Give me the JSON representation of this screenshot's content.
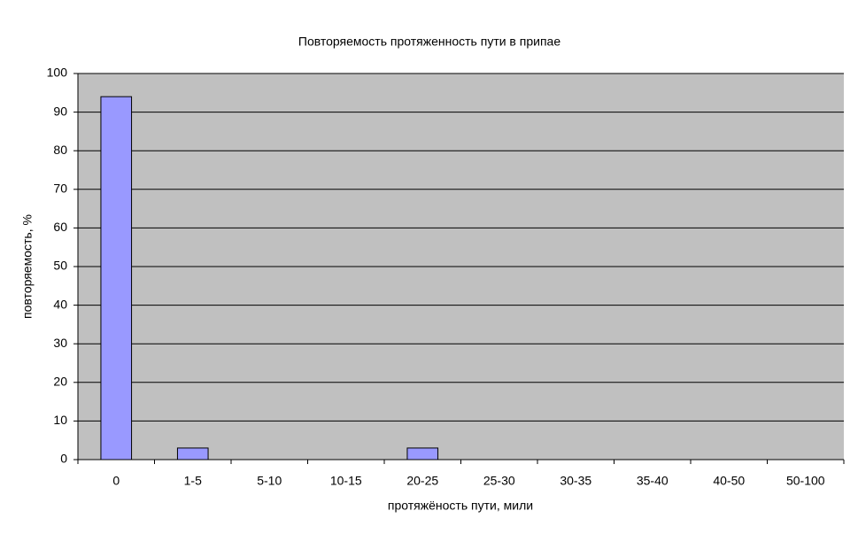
{
  "chart_data": {
    "type": "bar",
    "title": "Повторяемость протяженность пути в припае",
    "x_label": "протяжёность пути, мили",
    "y_label": "повторяемость, %",
    "categories": [
      "0",
      "1-5",
      "5-10",
      "10-15",
      "20-25",
      "25-30",
      "30-35",
      "35-40",
      "40-50",
      "50-100"
    ],
    "values": [
      94,
      3,
      0,
      0,
      3,
      0,
      0,
      0,
      0,
      0
    ],
    "color": "#9999ff",
    "ylim": [
      0,
      100
    ],
    "yticks": [
      0,
      10,
      20,
      30,
      40,
      50,
      60,
      70,
      80,
      90,
      100
    ],
    "grid": true
  }
}
